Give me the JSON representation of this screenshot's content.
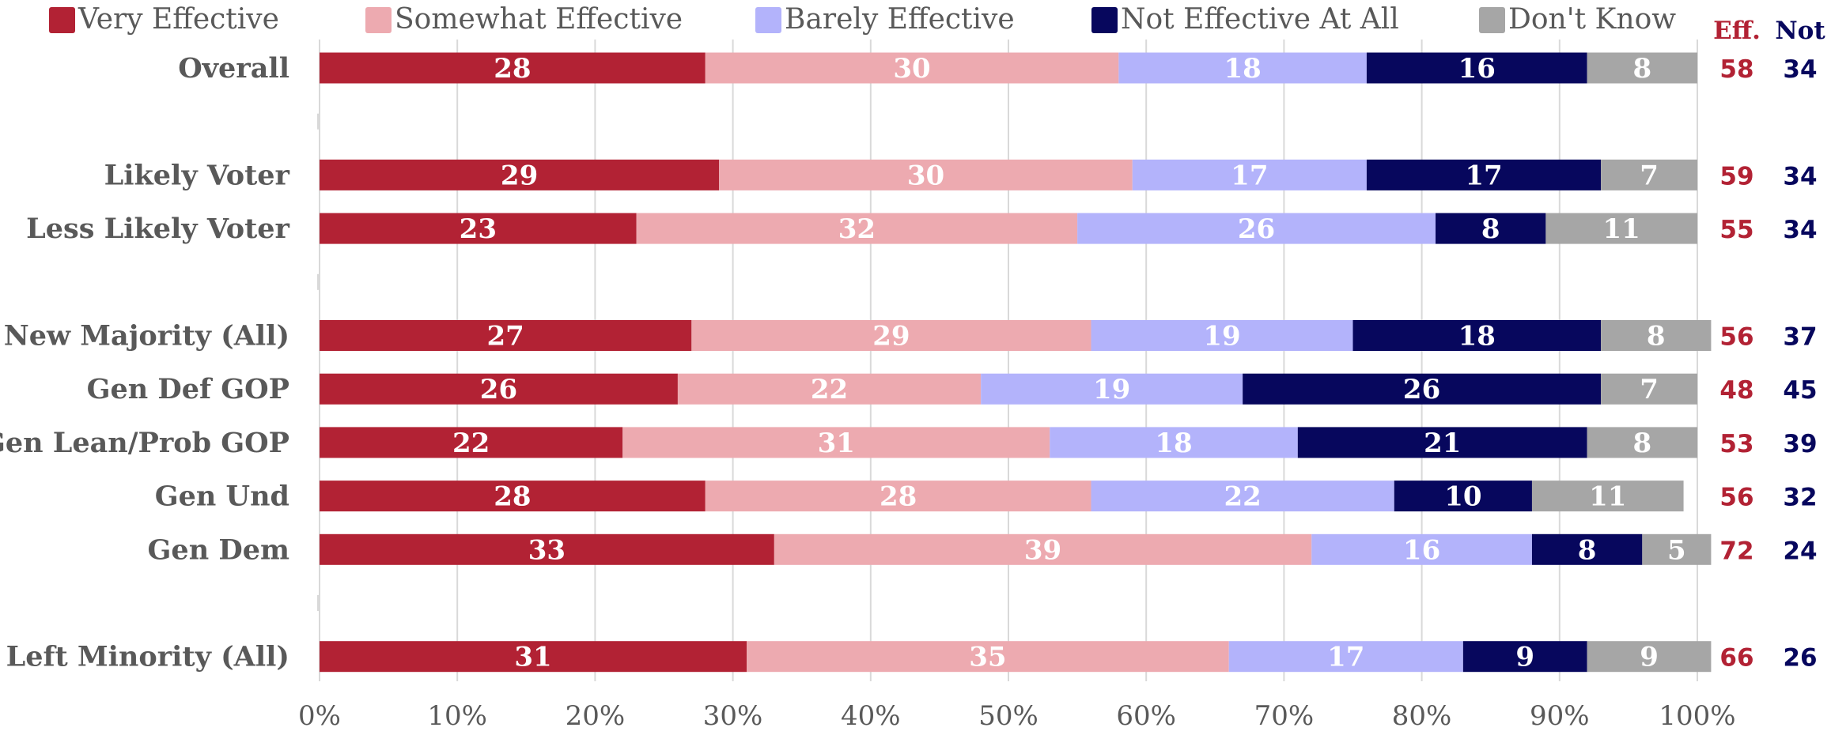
{
  "chart_data": {
    "type": "bar",
    "orientation": "horizontal",
    "stacked": true,
    "xlim": [
      0,
      100
    ],
    "x_ticks": [
      "0%",
      "10%",
      "20%",
      "30%",
      "40%",
      "50%",
      "60%",
      "70%",
      "80%",
      "90%",
      "100%"
    ],
    "grid": "vertical",
    "legend_position": "top",
    "categories": [
      "Overall",
      "",
      "Likely Voter",
      "Less Likely Voter",
      "",
      "New Majority (All)",
      "Gen Def GOP",
      "Gen Lean/Prob GOP",
      "Gen Und",
      "Gen Dem",
      "",
      "Left Minority (All)"
    ],
    "series": [
      {
        "name": "Very Effective",
        "color": "#b22234",
        "label_color": "#ffffff",
        "values": [
          28,
          null,
          29,
          23,
          null,
          27,
          26,
          22,
          28,
          33,
          null,
          31
        ]
      },
      {
        "name": "Somewhat Effective",
        "color": "#edaab0",
        "label_color": "#ffffff",
        "values": [
          30,
          null,
          30,
          32,
          null,
          29,
          22,
          31,
          28,
          39,
          null,
          35
        ]
      },
      {
        "name": "Barely Effective",
        "color": "#b3b3fb",
        "label_color": "#ffffff",
        "values": [
          18,
          null,
          17,
          26,
          null,
          19,
          19,
          18,
          22,
          16,
          null,
          17
        ]
      },
      {
        "name": "Not Effective At All",
        "color": "#07075d",
        "label_color": "#ffffff",
        "values": [
          16,
          null,
          17,
          8,
          null,
          18,
          26,
          21,
          10,
          8,
          null,
          9
        ]
      },
      {
        "name": "Don't Know",
        "color": "#a6a6a6",
        "label_color": "#ffffff",
        "values": [
          8,
          null,
          7,
          11,
          null,
          8,
          7,
          8,
          11,
          5,
          null,
          9
        ]
      }
    ],
    "side_columns": [
      {
        "header": "Eff.",
        "color": "#b22234",
        "values": [
          58,
          null,
          59,
          55,
          null,
          56,
          48,
          53,
          56,
          72,
          null,
          66
        ]
      },
      {
        "header": "Not",
        "color": "#07075d",
        "values": [
          34,
          null,
          34,
          34,
          null,
          37,
          45,
          39,
          32,
          24,
          null,
          26
        ]
      }
    ]
  }
}
